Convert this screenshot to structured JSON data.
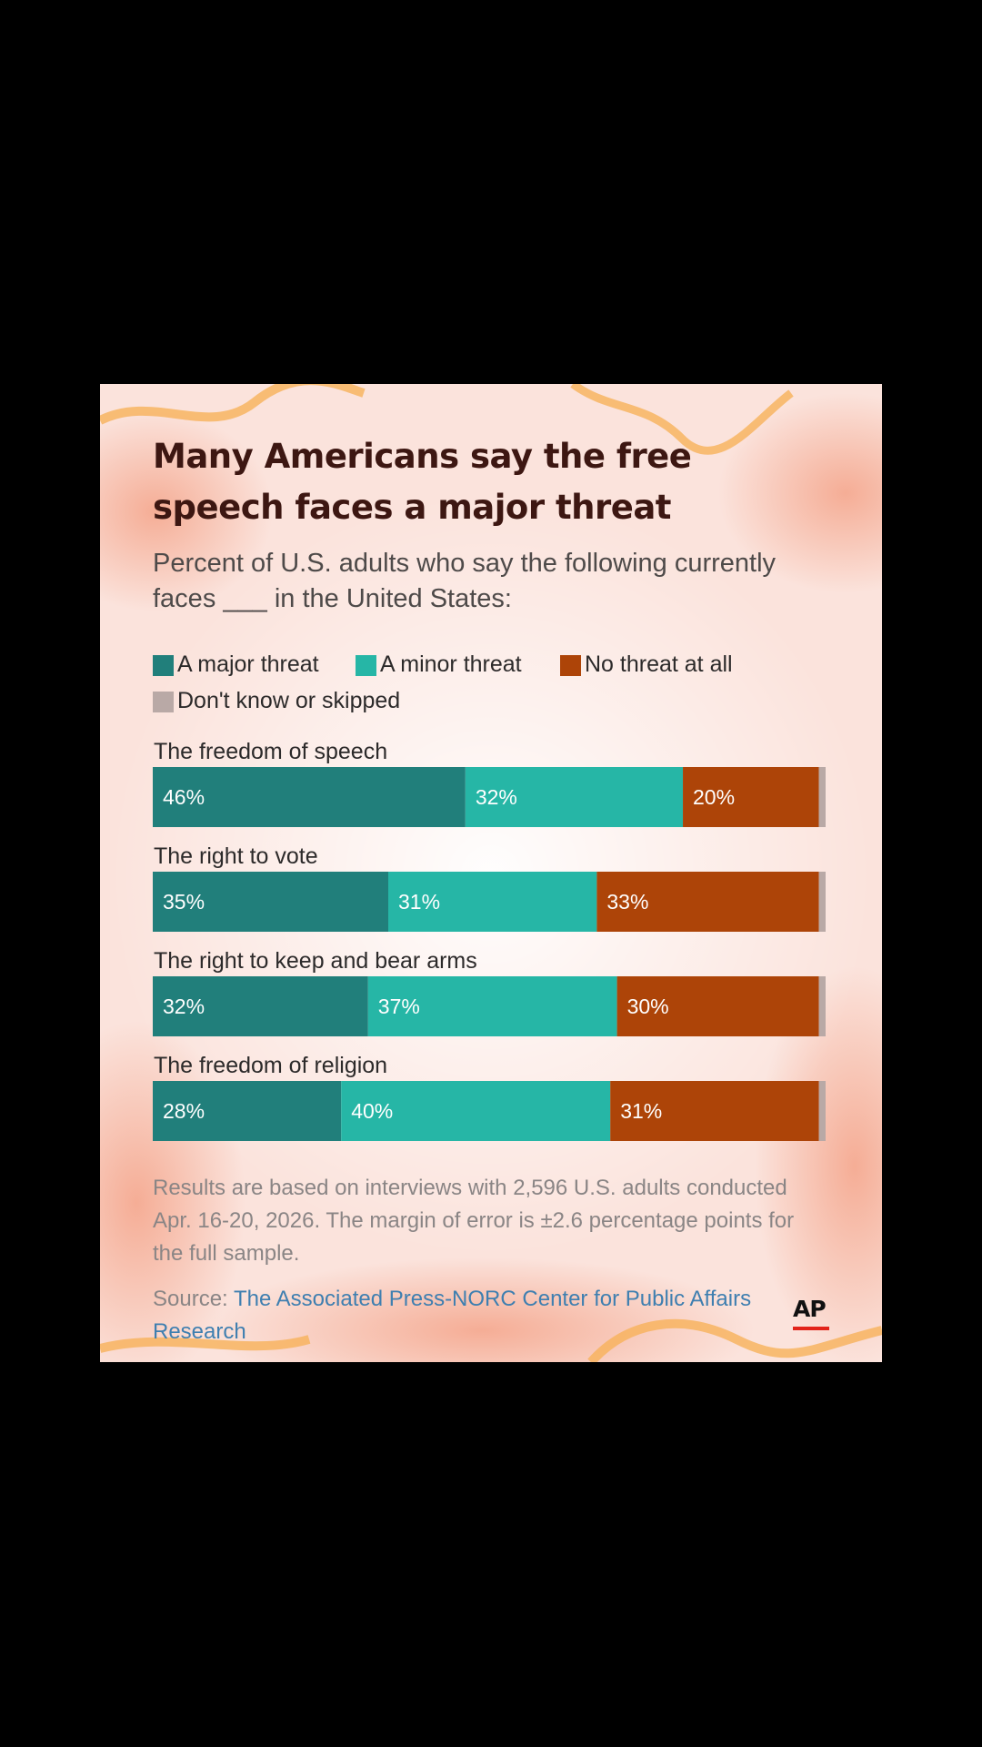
{
  "title": "Many Americans say the free speech faces a major threat",
  "subtitle": "Percent of U.S. adults who say the following currently faces ___ in the United States:",
  "legend": [
    {
      "label": "A major threat",
      "color": "#217f7b"
    },
    {
      "label": "A minor threat",
      "color": "#26b6a6"
    },
    {
      "label": "No threat at all",
      "color": "#ad4408"
    },
    {
      "label": "Don't know or skipped",
      "color": "#b9a9a6"
    }
  ],
  "chart_data": {
    "type": "bar",
    "orientation": "horizontal",
    "stacked": true,
    "title": "Many Americans say the free speech faces a major threat",
    "categories": [
      "The freedom of speech",
      "The right to vote",
      "The right to keep and bear arms",
      "The freedom of religion"
    ],
    "series": [
      {
        "name": "A major threat",
        "color": "#217f7b",
        "values": [
          46,
          35,
          32,
          28
        ]
      },
      {
        "name": "A minor threat",
        "color": "#26b6a6",
        "values": [
          32,
          31,
          37,
          40
        ]
      },
      {
        "name": "No threat at all",
        "color": "#ad4408",
        "values": [
          20,
          33,
          30,
          31
        ]
      },
      {
        "name": "Don't know or skipped",
        "color": "#b9a9a6",
        "values": [
          1,
          1,
          1,
          1
        ]
      }
    ],
    "data_labels": [
      [
        "46%",
        "32%",
        "20%"
      ],
      [
        "35%",
        "31%",
        "33%"
      ],
      [
        "32%",
        "37%",
        "30%"
      ],
      [
        "28%",
        "40%",
        "31%"
      ]
    ],
    "xlim": [
      0,
      100
    ],
    "legend_position": "top"
  },
  "note": "Results are based on interviews with 2,596 U.S. adults conducted Apr. 16-20, 2026. The margin of error is ±2.6 percentage points for the full sample.",
  "source": {
    "prefix": "Source: ",
    "link": "The Associated Press-NORC Center for Public Affairs Research"
  },
  "logo": {
    "text": "AP",
    "underline_color": "#e2231a"
  }
}
